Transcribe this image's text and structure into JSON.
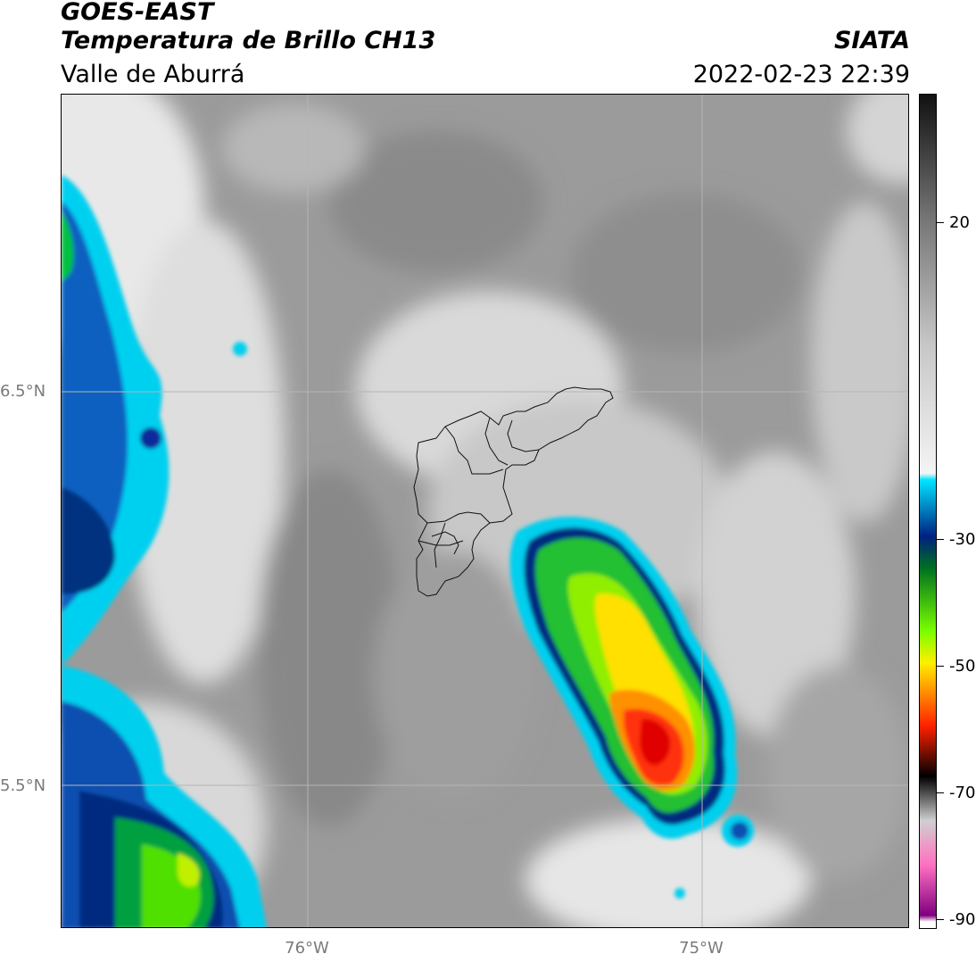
{
  "header": {
    "satellite": "GOES-EAST",
    "product": "Temperatura de Brillo CH13",
    "region": "Valle de Aburrá",
    "organization": "SIATA",
    "datetime": "2022-02-23 22:39"
  },
  "map": {
    "lat_labels": [
      "6.5°N",
      "5.5°N"
    ],
    "lon_labels": [
      "76°W",
      "75°W"
    ],
    "gridlines": true,
    "base_color": "#9a9a9a"
  },
  "colorbar": {
    "tick_labels": [
      "20",
      "-30",
      "-50",
      "-70",
      "-90"
    ],
    "stops": [
      {
        "value": 40,
        "color": "#111111"
      },
      {
        "value": 20,
        "color": "#777777"
      },
      {
        "value": 0,
        "color": "#c8c8c8"
      },
      {
        "value": -20,
        "color": "#f4f4f4"
      },
      {
        "value": -21,
        "color": "#00e5ff"
      },
      {
        "value": -30,
        "color": "#002080"
      },
      {
        "value": -35,
        "color": "#007020"
      },
      {
        "value": -45,
        "color": "#7aff00"
      },
      {
        "value": -50,
        "color": "#ffee00"
      },
      {
        "value": -60,
        "color": "#ff2000"
      },
      {
        "value": -68,
        "color": "#000000"
      },
      {
        "value": -75,
        "color": "#d0d0d0"
      },
      {
        "value": -82,
        "color": "#ff70c0"
      },
      {
        "value": -90,
        "color": "#800080"
      },
      {
        "value": -91,
        "color": "#ffffff"
      }
    ]
  }
}
